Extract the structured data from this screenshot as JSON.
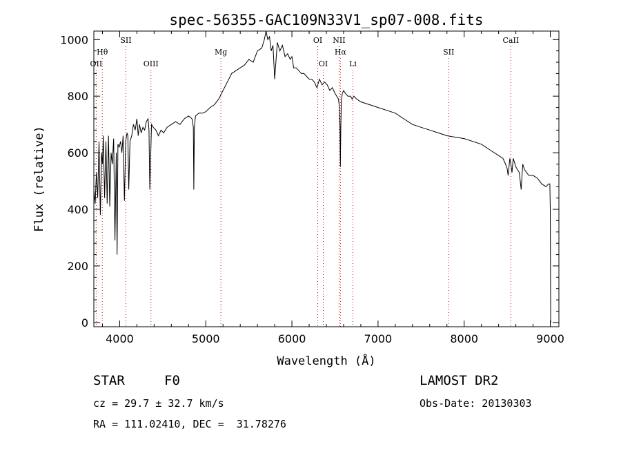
{
  "chart_data": {
    "type": "line",
    "title": "spec-56355-GAC109N33V1_sp07-008.fits",
    "xlabel": "Wavelength (Å)",
    "ylabel": "Flux (relative)",
    "xlim": [
      3700,
      9100
    ],
    "ylim": [
      -15,
      1030
    ],
    "xticks": [
      4000,
      5000,
      6000,
      7000,
      8000,
      9000
    ],
    "yticks": [
      0,
      200,
      400,
      600,
      800,
      1000
    ],
    "grid": false,
    "legend": "none",
    "series": [
      {
        "color": "#000000",
        "x": [
          3700,
          3715,
          3730,
          3745,
          3760,
          3775,
          3790,
          3800,
          3810,
          3825,
          3840,
          3855,
          3870,
          3885,
          3900,
          3915,
          3930,
          3945,
          3960,
          3970,
          3980,
          3995,
          4010,
          4025,
          4040,
          4055,
          4070,
          4085,
          4095,
          4105,
          4120,
          4140,
          4160,
          4180,
          4200,
          4215,
          4230,
          4250,
          4270,
          4290,
          4310,
          4330,
          4340,
          4350,
          4370,
          4390,
          4420,
          4450,
          4480,
          4510,
          4550,
          4600,
          4650,
          4700,
          4750,
          4800,
          4840,
          4855,
          4861,
          4867,
          4880,
          4920,
          4960,
          5000,
          5050,
          5100,
          5150,
          5200,
          5250,
          5300,
          5350,
          5400,
          5450,
          5500,
          5550,
          5600,
          5650,
          5680,
          5700,
          5720,
          5740,
          5760,
          5780,
          5800,
          5830,
          5860,
          5890,
          5920,
          5950,
          5980,
          6000,
          6020,
          6050,
          6080,
          6110,
          6140,
          6170,
          6200,
          6230,
          6260,
          6290,
          6320,
          6350,
          6380,
          6410,
          6440,
          6470,
          6500,
          6520,
          6540,
          6552,
          6558,
          6563,
          6568,
          6574,
          6585,
          6600,
          6620,
          6650,
          6680,
          6700,
          6720,
          6750,
          6800,
          6900,
          7000,
          7100,
          7200,
          7300,
          7400,
          7500,
          7600,
          7700,
          7800,
          7900,
          8000,
          8100,
          8200,
          8300,
          8400,
          8450,
          8480,
          8498,
          8510,
          8530,
          8542,
          8555,
          8570,
          8600,
          8640,
          8662,
          8680,
          8700,
          8750,
          8800,
          8850,
          8900,
          8950,
          8980,
          8995,
          9000,
          9005
        ],
        "y": [
          470,
          420,
          530,
          440,
          640,
          380,
          600,
          560,
          660,
          440,
          640,
          420,
          660,
          410,
          600,
          560,
          650,
          290,
          600,
          240,
          630,
          620,
          640,
          600,
          660,
          430,
          640,
          670,
          660,
          470,
          640,
          660,
          700,
          680,
          720,
          660,
          700,
          670,
          690,
          680,
          710,
          720,
          680,
          470,
          700,
          690,
          680,
          660,
          680,
          670,
          690,
          700,
          710,
          700,
          720,
          730,
          720,
          690,
          470,
          690,
          730,
          740,
          740,
          745,
          760,
          770,
          790,
          820,
          850,
          880,
          890,
          900,
          910,
          930,
          920,
          960,
          970,
          1000,
          1030,
          1000,
          1010,
          960,
          980,
          860,
          990,
          960,
          980,
          940,
          950,
          930,
          940,
          900,
          900,
          890,
          880,
          880,
          870,
          860,
          860,
          850,
          830,
          860,
          840,
          850,
          840,
          820,
          830,
          810,
          800,
          790,
          760,
          700,
          550,
          700,
          780,
          810,
          820,
          810,
          800,
          800,
          790,
          800,
          790,
          780,
          770,
          760,
          750,
          740,
          720,
          700,
          690,
          680,
          670,
          660,
          655,
          650,
          640,
          630,
          610,
          590,
          580,
          560,
          545,
          520,
          580,
          560,
          530,
          580,
          550,
          530,
          470,
          560,
          540,
          520,
          520,
          510,
          490,
          480,
          490,
          490,
          400,
          0
        ]
      }
    ],
    "lines": [
      {
        "label": "OII",
        "x": 3727,
        "row": 3
      },
      {
        "label": "Hθ",
        "x": 3798,
        "row": 2
      },
      {
        "label": "SII",
        "x": 4072,
        "row": 1
      },
      {
        "label": "OIII",
        "x": 4363,
        "row": 3
      },
      {
        "label": "Mg",
        "x": 5175,
        "row": 2
      },
      {
        "label": "OI",
        "x": 6300,
        "row": 1
      },
      {
        "label": "OI",
        "x": 6364,
        "row": 3
      },
      {
        "label": "NII",
        "x": 6548,
        "row": 1
      },
      {
        "label": "Hα",
        "x": 6563,
        "row": 2
      },
      {
        "label": "Li",
        "x": 6708,
        "row": 3
      },
      {
        "label": "SII",
        "x": 7820,
        "row": 2
      },
      {
        "label": "CaII",
        "x": 8542,
        "row": 1
      }
    ]
  },
  "info": {
    "obj_class": "STAR",
    "subclass": "F0",
    "survey": "LAMOST DR2",
    "cz": "cz = 29.7 ± 32.7 km/s",
    "obs_date": "Obs-Date: 20130303",
    "radec": "RA = 111.02410, DEC =  31.78276"
  }
}
